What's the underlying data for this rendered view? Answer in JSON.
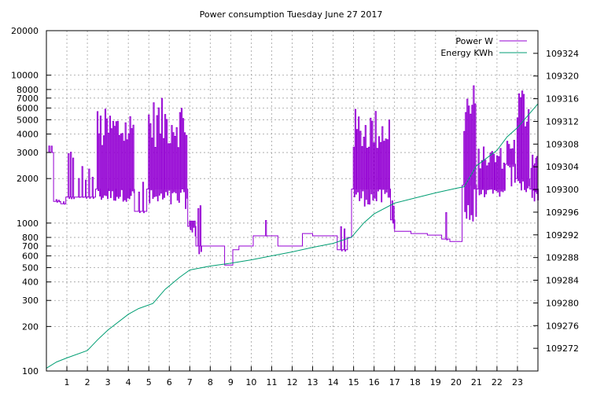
{
  "chart_data": {
    "type": "line",
    "title": "Power consumption Tuesday June 27 2017",
    "xlabel": "",
    "ylabel": "",
    "grid": true,
    "legend_position": "top-right",
    "x_axis": {
      "min": 0,
      "max": 24,
      "ticks": [
        1,
        2,
        3,
        4,
        5,
        6,
        7,
        8,
        9,
        10,
        11,
        12,
        13,
        14,
        15,
        16,
        17,
        18,
        19,
        20,
        21,
        22,
        23
      ]
    },
    "y_axis_left": {
      "scale": "log",
      "min": 100,
      "max": 20000,
      "ticks": [
        100,
        200,
        300,
        400,
        500,
        600,
        700,
        800,
        1000,
        2000,
        3000,
        4000,
        5000,
        6000,
        7000,
        8000,
        10000,
        20000
      ]
    },
    "y_axis_right": {
      "min": 109268,
      "max": 109328,
      "ticks": [
        109272,
        109276,
        109280,
        109284,
        109288,
        109292,
        109296,
        109300,
        109304,
        109308,
        109312,
        109316,
        109320,
        109324
      ]
    },
    "series": [
      {
        "name": "Power W",
        "color": "#9400d3",
        "axis": "left",
        "style": "spiky-step",
        "segments": [
          {
            "x0": 0.0,
            "x1": 0.35,
            "base": 3000,
            "lo": 3000,
            "hi": 3400,
            "spikes": 2
          },
          {
            "x0": 0.35,
            "x1": 0.7,
            "base": 1400,
            "lo": 1350,
            "hi": 1450,
            "spikes": 2
          },
          {
            "x0": 0.7,
            "x1": 0.95,
            "base": 1350,
            "lo": 1300,
            "hi": 1400,
            "spikes": 1
          },
          {
            "x0": 0.95,
            "x1": 1.4,
            "base": 1500,
            "lo": 1450,
            "hi": 3300,
            "spikes": 3
          },
          {
            "x0": 1.4,
            "x1": 2.4,
            "base": 1500,
            "lo": 1450,
            "hi": 2500,
            "spikes": 5
          },
          {
            "x0": 2.4,
            "x1": 4.3,
            "base": 1700,
            "lo": 1400,
            "hi": 6000,
            "spikes": 24
          },
          {
            "x0": 4.3,
            "x1": 4.9,
            "base": 1200,
            "lo": 1150,
            "hi": 2300,
            "spikes": 2
          },
          {
            "x0": 4.9,
            "x1": 6.9,
            "base": 1700,
            "lo": 1250,
            "hi": 7000,
            "spikes": 24
          },
          {
            "x0": 6.9,
            "x1": 7.3,
            "base": 950,
            "lo": 800,
            "hi": 1050,
            "spikes": 4
          },
          {
            "x0": 7.3,
            "x1": 7.6,
            "base": 700,
            "lo": 600,
            "hi": 1500,
            "spikes": 2
          },
          {
            "x0": 7.6,
            "x1": 8.7,
            "base": 700,
            "lo": 690,
            "hi": 710,
            "spikes": 0
          },
          {
            "x0": 8.7,
            "x1": 9.1,
            "base": 520,
            "lo": 515,
            "hi": 525,
            "spikes": 0
          },
          {
            "x0": 9.1,
            "x1": 9.4,
            "base": 660,
            "lo": 650,
            "hi": 670,
            "spikes": 0
          },
          {
            "x0": 9.4,
            "x1": 10.1,
            "base": 700,
            "lo": 690,
            "hi": 710,
            "spikes": 0
          },
          {
            "x0": 10.1,
            "x1": 11.3,
            "base": 820,
            "lo": 810,
            "hi": 1200,
            "spikes": 1
          },
          {
            "x0": 11.3,
            "x1": 12.5,
            "base": 700,
            "lo": 680,
            "hi": 720,
            "spikes": 0
          },
          {
            "x0": 12.5,
            "x1": 13.0,
            "base": 850,
            "lo": 840,
            "hi": 860,
            "spikes": 0
          },
          {
            "x0": 13.0,
            "x1": 14.2,
            "base": 820,
            "lo": 810,
            "hi": 830,
            "spikes": 0
          },
          {
            "x0": 14.2,
            "x1": 14.7,
            "base": 660,
            "lo": 640,
            "hi": 1150,
            "spikes": 2
          },
          {
            "x0": 14.7,
            "x1": 14.9,
            "base": 800,
            "lo": 790,
            "hi": 810,
            "spikes": 0
          },
          {
            "x0": 14.9,
            "x1": 16.8,
            "base": 1700,
            "lo": 1300,
            "hi": 6000,
            "spikes": 22
          },
          {
            "x0": 16.8,
            "x1": 17.0,
            "base": 1050,
            "lo": 900,
            "hi": 1500,
            "spikes": 2
          },
          {
            "x0": 17.0,
            "x1": 17.8,
            "base": 880,
            "lo": 870,
            "hi": 890,
            "spikes": 0
          },
          {
            "x0": 17.8,
            "x1": 18.6,
            "base": 850,
            "lo": 840,
            "hi": 860,
            "spikes": 0
          },
          {
            "x0": 18.6,
            "x1": 19.3,
            "base": 830,
            "lo": 820,
            "hi": 840,
            "spikes": 0
          },
          {
            "x0": 19.3,
            "x1": 19.7,
            "base": 780,
            "lo": 770,
            "hi": 1250,
            "spikes": 1
          },
          {
            "x0": 19.7,
            "x1": 20.3,
            "base": 750,
            "lo": 740,
            "hi": 760,
            "spikes": 0
          },
          {
            "x0": 20.3,
            "x1": 21.0,
            "base": 1800,
            "lo": 800,
            "hi": 9000,
            "spikes": 8
          },
          {
            "x0": 21.0,
            "x1": 22.4,
            "base": 1700,
            "lo": 1500,
            "hi": 3300,
            "spikes": 16
          },
          {
            "x0": 22.4,
            "x1": 22.9,
            "base": 2500,
            "lo": 1700,
            "hi": 3800,
            "spikes": 5
          },
          {
            "x0": 22.9,
            "x1": 23.6,
            "base": 2000,
            "lo": 1600,
            "hi": 9000,
            "spikes": 8
          },
          {
            "x0": 23.6,
            "x1": 24.0,
            "base": 1700,
            "lo": 1400,
            "hi": 3300,
            "spikes": 6
          }
        ]
      },
      {
        "name": "Energy KWh",
        "color": "#009e73",
        "axis": "right",
        "x": [
          0,
          0.5,
          1.0,
          2.0,
          2.5,
          3.0,
          4.0,
          4.5,
          5.2,
          5.8,
          6.5,
          7.0,
          8.0,
          9.0,
          10.0,
          11.0,
          12.0,
          13.0,
          14.0,
          14.9,
          15.5,
          16.0,
          17.0,
          18.0,
          19.0,
          20.0,
          20.4,
          21.0,
          22.0,
          22.5,
          23.0,
          24.0
        ],
        "y": [
          109268.5,
          109269.6,
          109270.3,
          109271.6,
          109273.5,
          109275.2,
          109278.0,
          109279.0,
          109279.9,
          109282.4,
          109284.5,
          109285.8,
          109286.5,
          109287.0,
          109287.6,
          109288.3,
          109289.0,
          109289.8,
          109290.5,
          109291.6,
          109294.1,
          109295.7,
          109297.6,
          109298.5,
          109299.4,
          109300.2,
          109300.5,
          109304.2,
          109306.9,
          109309.3,
          109310.9,
          109315.1
        ]
      }
    ]
  }
}
